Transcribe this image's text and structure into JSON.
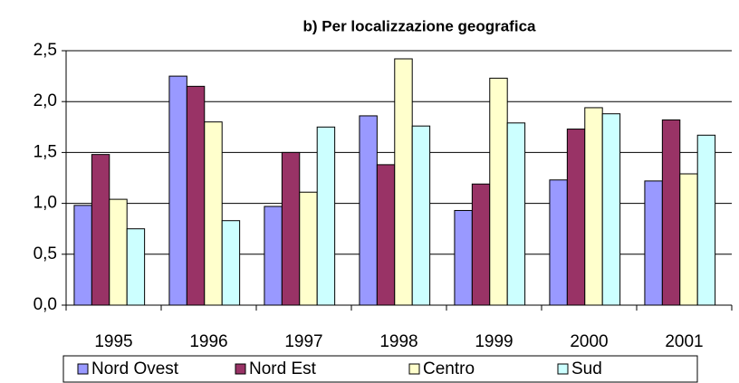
{
  "chart_data": {
    "type": "bar",
    "title": "b) Per localizzazione geografica",
    "categories": [
      "1995",
      "1996",
      "1997",
      "1998",
      "1999",
      "2000",
      "2001"
    ],
    "series": [
      {
        "name": "Nord Ovest",
        "color": "#9999ff",
        "values": [
          0.98,
          2.25,
          0.97,
          1.86,
          0.93,
          1.23,
          1.22
        ]
      },
      {
        "name": "Nord Est",
        "color": "#993366",
        "values": [
          1.48,
          2.15,
          1.5,
          1.38,
          1.19,
          1.73,
          1.82
        ]
      },
      {
        "name": "Centro",
        "color": "#ffffcc",
        "values": [
          1.04,
          1.8,
          1.11,
          2.42,
          2.23,
          1.94,
          1.29
        ]
      },
      {
        "name": "Sud",
        "color": "#ccffff",
        "values": [
          0.75,
          0.83,
          1.75,
          1.76,
          1.79,
          1.88,
          1.67
        ]
      }
    ],
    "ylim": [
      0,
      2.5
    ],
    "yticks": [
      {
        "value": 0,
        "label": "0,0"
      },
      {
        "value": 0.5,
        "label": "0,5"
      },
      {
        "value": 1,
        "label": "1,0"
      },
      {
        "value": 1.5,
        "label": "1,5"
      },
      {
        "value": 2,
        "label": "2,0"
      },
      {
        "value": 2.5,
        "label": "2,5"
      }
    ],
    "grid": true,
    "legend": "bottom"
  }
}
